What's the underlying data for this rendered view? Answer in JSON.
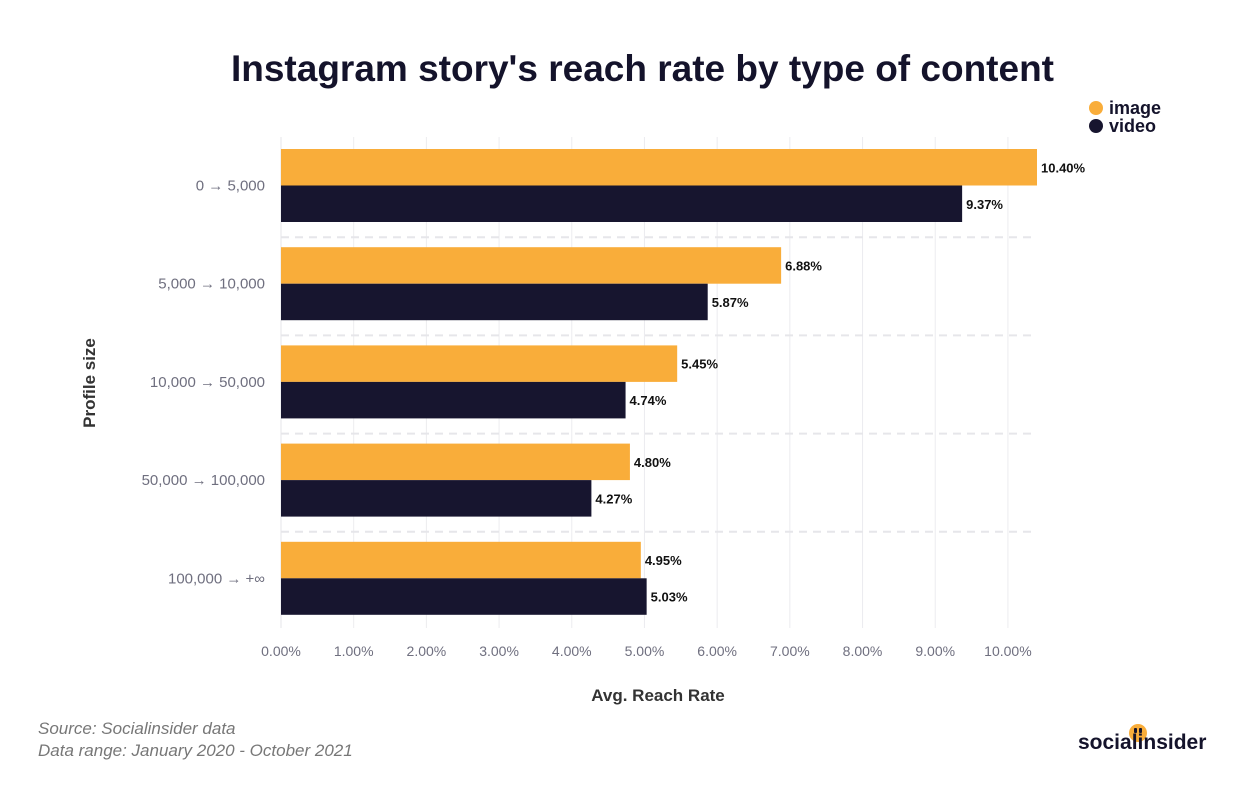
{
  "chart_data": {
    "type": "bar",
    "orientation": "horizontal",
    "title": "Instagram story's reach rate by type of content",
    "xlabel": "Avg. Reach Rate",
    "ylabel": "Profile size",
    "categories": [
      "0 → 5,000",
      "5,000 → 10,000",
      "10,000 → 50,000",
      "50,000 → 100,000",
      "100,000 → +∞"
    ],
    "series": [
      {
        "name": "image",
        "color": "#f9ad3a",
        "values": [
          10.4,
          6.88,
          5.45,
          4.8,
          4.95
        ],
        "labels": [
          "10.40%",
          "6.88%",
          "5.45%",
          "4.80%",
          "4.95%"
        ]
      },
      {
        "name": "video",
        "color": "#17152f",
        "values": [
          9.37,
          5.87,
          4.74,
          4.27,
          5.03
        ],
        "labels": [
          "9.37%",
          "5.87%",
          "4.74%",
          "4.27%",
          "5.03%"
        ]
      }
    ],
    "xlim": [
      0,
      10.4
    ],
    "xticks": [
      0,
      1,
      2,
      3,
      4,
      5,
      6,
      7,
      8,
      9,
      10
    ],
    "xtick_labels": [
      "0.00%",
      "1.00%",
      "2.00%",
      "3.00%",
      "4.00%",
      "5.00%",
      "6.00%",
      "7.00%",
      "8.00%",
      "9.00%",
      "10.00%"
    ],
    "grid": true,
    "legend": "top-right"
  },
  "footer": {
    "source": "Source: Socialinsider data",
    "range": "Data range: January 2020 - October 2021",
    "brand": "socialinsider"
  }
}
